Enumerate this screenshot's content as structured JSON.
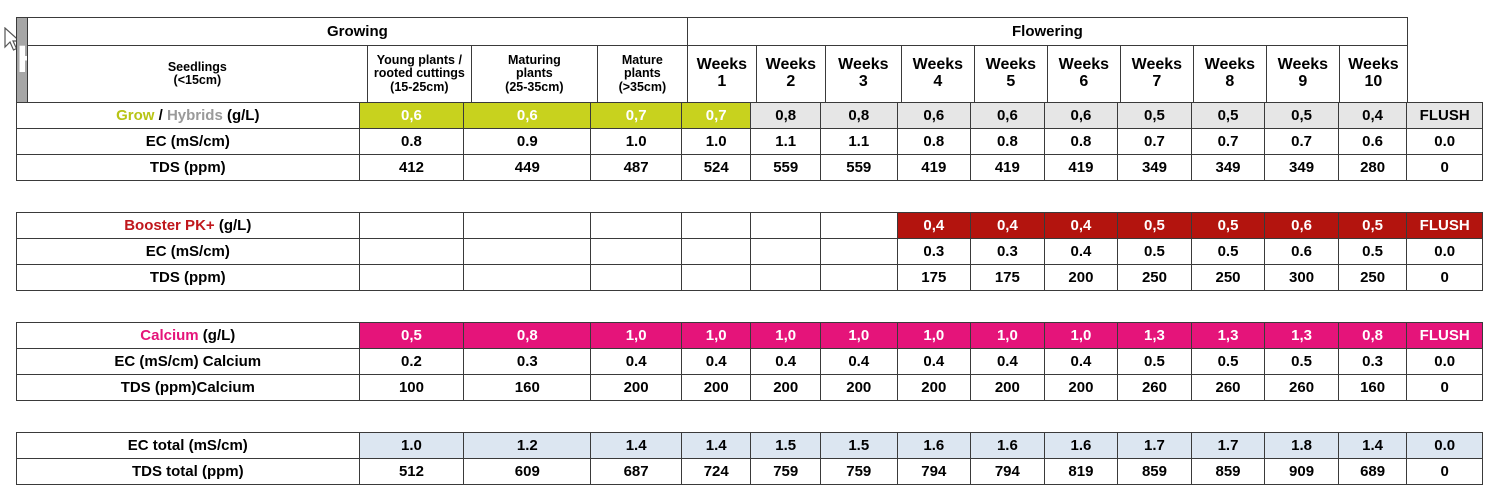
{
  "header": {
    "title": "Hybrids",
    "growing": "Growing",
    "flowering": "Flowering",
    "growing_cols": [
      [
        "Seedlings",
        "(<15cm)"
      ],
      [
        "Young plants /",
        "rooted cuttings",
        "(15-25cm)"
      ],
      [
        "Maturing",
        "plants",
        "(25-35cm)"
      ],
      [
        "Mature",
        "plants",
        "(>35cm)"
      ]
    ],
    "weeks": [
      [
        "Weeks",
        "1"
      ],
      [
        "Weeks",
        "2"
      ],
      [
        "Weeks",
        "3"
      ],
      [
        "Weeks",
        "4"
      ],
      [
        "Weeks",
        "5"
      ],
      [
        "Weeks",
        "6"
      ],
      [
        "Weeks",
        "7"
      ],
      [
        "Weeks",
        "8"
      ],
      [
        "Weeks",
        "9"
      ],
      [
        "Weeks",
        "10"
      ]
    ]
  },
  "grow": {
    "label_grow": "Grow",
    "label_sep": " / ",
    "label_hybrids": "Hybrids",
    "label_unit": " (g/L)",
    "values": [
      "0,6",
      "0,6",
      "0,7",
      "0,7",
      "0,8",
      "0,8",
      "0,6",
      "0,6",
      "0,6",
      "0,5",
      "0,5",
      "0,5",
      "0,4",
      "FLUSH"
    ],
    "ec_label": "EC (mS/cm)",
    "ec": [
      "0.8",
      "0.9",
      "1.0",
      "1.0",
      "1.1",
      "1.1",
      "0.8",
      "0.8",
      "0.8",
      "0.7",
      "0.7",
      "0.7",
      "0.6",
      "0.0"
    ],
    "tds_label": "TDS (ppm)",
    "tds": [
      "412",
      "449",
      "487",
      "524",
      "559",
      "559",
      "419",
      "419",
      "419",
      "349",
      "349",
      "349",
      "280",
      "0"
    ]
  },
  "booster": {
    "label_name": "Booster PK+",
    "label_unit": " (g/L)",
    "values": [
      "",
      "",
      "",
      "",
      "",
      "",
      "0,4",
      "0,4",
      "0,4",
      "0,5",
      "0,5",
      "0,6",
      "0,5",
      "FLUSH"
    ],
    "ec_label": "EC (mS/cm)",
    "ec": [
      "",
      "",
      "",
      "",
      "",
      "",
      "0.3",
      "0.3",
      "0.4",
      "0.5",
      "0.5",
      "0.6",
      "0.5",
      "0.0"
    ],
    "tds_label": "TDS (ppm)",
    "tds": [
      "",
      "",
      "",
      "",
      "",
      "",
      "175",
      "175",
      "200",
      "250",
      "250",
      "300",
      "250",
      "0"
    ]
  },
  "calcium": {
    "label_name": "Calcium",
    "label_unit": " (g/L)",
    "values": [
      "0,5",
      "0,8",
      "1,0",
      "1,0",
      "1,0",
      "1,0",
      "1,0",
      "1,0",
      "1,0",
      "1,3",
      "1,3",
      "1,3",
      "0,8",
      "FLUSH"
    ],
    "ec_label": "EC (mS/cm) Calcium",
    "ec": [
      "0.2",
      "0.3",
      "0.4",
      "0.4",
      "0.4",
      "0.4",
      "0.4",
      "0.4",
      "0.4",
      "0.5",
      "0.5",
      "0.5",
      "0.3",
      "0.0"
    ],
    "tds_label": "TDS (ppm)Calcium",
    "tds": [
      "100",
      "160",
      "200",
      "200",
      "200",
      "200",
      "200",
      "200",
      "200",
      "260",
      "260",
      "260",
      "160",
      "0"
    ]
  },
  "totals": {
    "ec_label": "EC total (mS/cm)",
    "ec": [
      "1.0",
      "1.2",
      "1.4",
      "1.4",
      "1.5",
      "1.5",
      "1.6",
      "1.6",
      "1.6",
      "1.7",
      "1.7",
      "1.8",
      "1.4",
      "0.0"
    ],
    "tds_label": "TDS total (ppm)",
    "tds": [
      "512",
      "609",
      "687",
      "724",
      "759",
      "759",
      "794",
      "794",
      "819",
      "859",
      "859",
      "909",
      "689",
      "0"
    ]
  },
  "colors": {
    "grow_fill": "#c8d21e",
    "flower_grey": "#e6e6e6",
    "booster_red": "#b3140e",
    "calcium_pink": "#e5147a",
    "total_blue": "#dce6f1",
    "title_grey": "#a6a6a6"
  },
  "cursor_icon": "mouse-pointer-icon"
}
